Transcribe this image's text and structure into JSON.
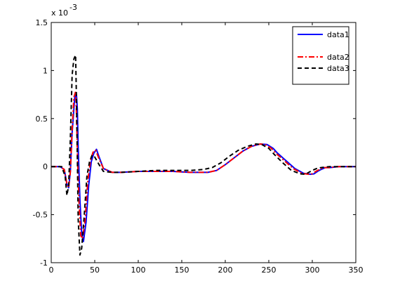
{
  "chart_data": {
    "type": "line",
    "exponent_label": {
      "base": "x 10",
      "power": "-3"
    },
    "xlim": [
      0,
      350
    ],
    "ylim": [
      -1,
      1.5
    ],
    "x_ticks": [
      0,
      50,
      100,
      150,
      200,
      250,
      300,
      350
    ],
    "x_tick_labels": [
      "0",
      "50",
      "100",
      "150",
      "200",
      "250",
      "300",
      "350"
    ],
    "y_ticks": [
      -1,
      -0.5,
      0,
      0.5,
      1,
      1.5
    ],
    "y_tick_labels": [
      "-1",
      "-0.5",
      "0",
      "0.5",
      "1",
      "1.5"
    ],
    "grid": false,
    "legend_position": "top-right",
    "series": [
      {
        "name": "data1",
        "color": "#0000ff",
        "style": "solid",
        "x": [
          0,
          10,
          15,
          18,
          20,
          22,
          24,
          27,
          29,
          30,
          31,
          33,
          35,
          37,
          40,
          43,
          46,
          49,
          52,
          55,
          60,
          70,
          80,
          100,
          120,
          140,
          160,
          180,
          190,
          200,
          210,
          220,
          230,
          240,
          248,
          255,
          260,
          270,
          280,
          290,
          298,
          302,
          306,
          310,
          315,
          320,
          330,
          340,
          350
        ],
        "y": [
          0,
          0,
          -0.03,
          -0.18,
          -0.22,
          -0.05,
          0.35,
          0.72,
          0.75,
          0.6,
          0.2,
          -0.35,
          -0.7,
          -0.78,
          -0.58,
          -0.2,
          0.05,
          0.14,
          0.18,
          0.1,
          -0.02,
          -0.06,
          -0.06,
          -0.05,
          -0.05,
          -0.05,
          -0.06,
          -0.06,
          -0.04,
          0.02,
          0.09,
          0.16,
          0.21,
          0.235,
          0.23,
          0.19,
          0.14,
          0.06,
          -0.02,
          -0.07,
          -0.08,
          -0.075,
          -0.05,
          -0.03,
          -0.01,
          -0.01,
          0,
          0,
          0
        ]
      },
      {
        "name": "data2",
        "color": "#ff0000",
        "style": "dashdot",
        "x": [
          0,
          10,
          15,
          18,
          20,
          22,
          24,
          26,
          28,
          29,
          30,
          32,
          34,
          36,
          39,
          42,
          45,
          48,
          51,
          55,
          60,
          70,
          80,
          100,
          120,
          140,
          160,
          180,
          190,
          200,
          210,
          220,
          230,
          240,
          246,
          253,
          258,
          268,
          278,
          288,
          296,
          300,
          304,
          308,
          313,
          320,
          330,
          340,
          350
        ],
        "y": [
          0,
          0,
          -0.03,
          -0.18,
          -0.22,
          -0.05,
          0.38,
          0.72,
          0.78,
          0.55,
          0.15,
          -0.4,
          -0.72,
          -0.75,
          -0.55,
          -0.15,
          0.06,
          0.15,
          0.17,
          0.08,
          -0.02,
          -0.06,
          -0.06,
          -0.05,
          -0.05,
          -0.05,
          -0.06,
          -0.06,
          -0.04,
          0.02,
          0.09,
          0.16,
          0.21,
          0.235,
          0.23,
          0.19,
          0.14,
          0.06,
          -0.02,
          -0.07,
          -0.08,
          -0.075,
          -0.05,
          -0.03,
          -0.01,
          -0.01,
          0,
          0,
          0
        ]
      },
      {
        "name": "data3",
        "color": "#000000",
        "style": "dashed",
        "x": [
          0,
          12,
          16,
          18,
          20,
          22,
          24,
          26,
          28,
          29,
          30,
          31,
          33,
          35,
          38,
          41,
          44,
          47,
          50,
          55,
          60,
          70,
          80,
          100,
          120,
          140,
          160,
          175,
          185,
          195,
          205,
          215,
          225,
          235,
          242,
          250,
          256,
          266,
          276,
          286,
          292,
          296,
          300,
          305,
          310,
          320,
          330,
          340,
          350
        ],
        "y": [
          0,
          0,
          -0.1,
          -0.3,
          -0.2,
          0.3,
          0.95,
          1.12,
          1.16,
          0.7,
          0.1,
          -0.55,
          -0.92,
          -0.85,
          -0.5,
          -0.1,
          0.05,
          0.12,
          0.1,
          0.02,
          -0.05,
          -0.06,
          -0.06,
          -0.05,
          -0.04,
          -0.04,
          -0.04,
          -0.03,
          -0.01,
          0.04,
          0.11,
          0.17,
          0.21,
          0.235,
          0.23,
          0.19,
          0.13,
          0.04,
          -0.04,
          -0.075,
          -0.08,
          -0.06,
          -0.04,
          -0.02,
          -0.01,
          0,
          0,
          0,
          0
        ]
      }
    ]
  }
}
